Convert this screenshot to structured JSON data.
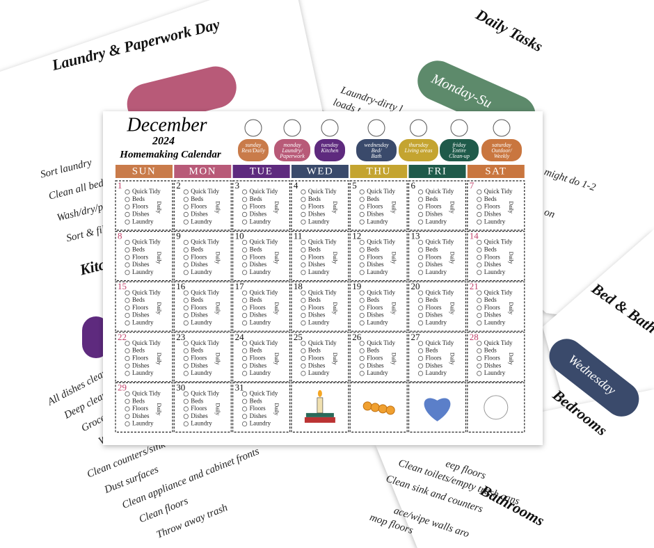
{
  "background_pages": {
    "laundry_page": {
      "title": "Laundry & Paperwork Day",
      "items": [
        "Sort laundry",
        "Clean all bedding",
        "Wash/dry/put a",
        "Sort & file ba"
      ],
      "section": "Kitchen W",
      "kitchen_items": [
        "All dishes clean a",
        "Deep clean refr",
        "Grocery/pa",
        "Wipe st",
        "Clean counters/sink",
        "Dust surfaces",
        "Clean appliance and cabinet fronts",
        "Clean floors",
        "Throw away trash"
      ]
    },
    "daily_page": {
      "title": "Daily Tasks",
      "pill": "Monday-Su",
      "items": [
        "Laundry-dirty l",
        "loads t",
        "might do 1-2",
        "ay on"
      ]
    },
    "bed_bath_page": {
      "title": "Bed & Bath D",
      "pill": "Wednesday",
      "section": "Bedrooms"
    },
    "bathrooms_page": {
      "section": "Bathrooms",
      "items": [
        "eep floors",
        "Clean toilets/empty trash cans",
        "Clean sink and counters",
        "ace/wipe walls aro",
        "mop floors"
      ]
    }
  },
  "calendar": {
    "month": "December",
    "year": "2024",
    "subtitle": "Homemaking Calendar",
    "day_tags": [
      {
        "day": "sunday",
        "focus": [
          "Rest/Daily"
        ],
        "color": "#c97b4a"
      },
      {
        "day": "monday",
        "focus": [
          "Laundry/",
          "Paperwork"
        ],
        "color": "#b85a78"
      },
      {
        "day": "tuesday",
        "focus": [
          "Kitchen"
        ],
        "color": "#5e2a7e"
      },
      {
        "day": "wednesday",
        "focus": [
          "Bed/",
          "Bath"
        ],
        "color": "#3a4a6b"
      },
      {
        "day": "thursday",
        "focus": [
          "Living areas"
        ],
        "color": "#c4a430"
      },
      {
        "day": "friday",
        "focus": [
          "Entire",
          "Clean-up"
        ],
        "color": "#1f5a4a"
      },
      {
        "day": "saturday",
        "focus": [
          "Outdoor/",
          "Weekly"
        ],
        "color": "#c9763f"
      }
    ],
    "weekdays": [
      "SUN",
      "MON",
      "TUE",
      "WED",
      "THU",
      "FRI",
      "SAT"
    ],
    "days": [
      1,
      2,
      3,
      4,
      5,
      6,
      7,
      8,
      9,
      10,
      11,
      12,
      13,
      14,
      15,
      16,
      17,
      18,
      19,
      20,
      21,
      22,
      23,
      24,
      25,
      26,
      27,
      28,
      29,
      30,
      31
    ],
    "checklist": [
      "Quick Tidy",
      "Beds",
      "Floors",
      "Dishes",
      "Laundry"
    ],
    "checklist_label": "Daily"
  }
}
